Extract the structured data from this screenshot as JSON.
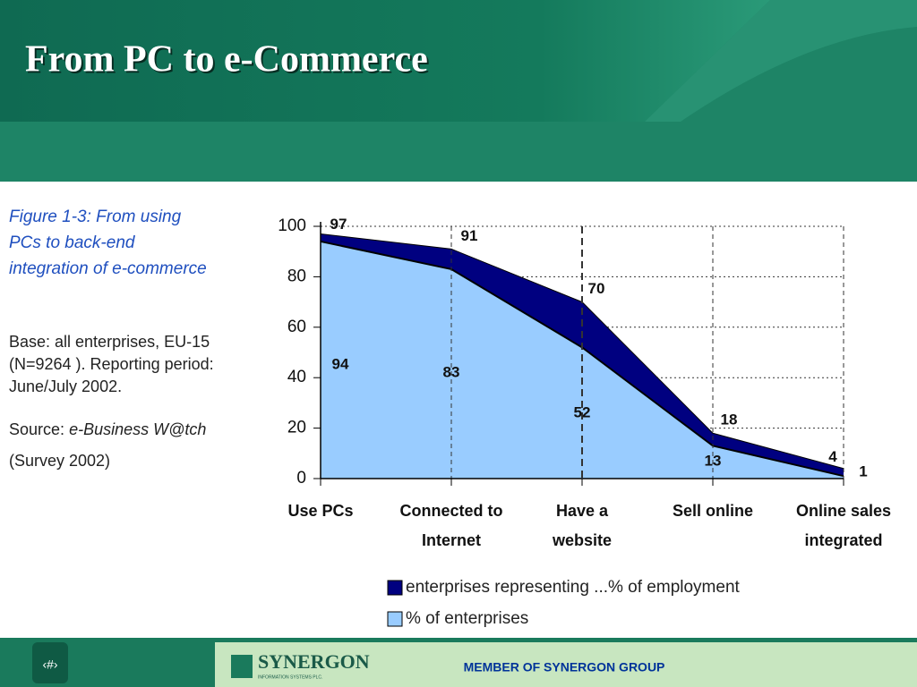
{
  "slide": {
    "title": "From PC to e-Commerce",
    "caption": "Figure 1-3: From using PCs to back-end integration of e-commerce",
    "base": "Base: all enterprises, EU-15 (N=9264 ). Reporting period: June/July 2002.",
    "source_label": "Source:",
    "source_name": "e-Business W@tch",
    "survey": "(Survey 2002)",
    "footer": {
      "page": "‹#›",
      "logo": "SYNERGON",
      "logo_sub": "INFORMATION SYSTEMS PLC.",
      "member": "MEMBER OF SYNERGON GROUP"
    }
  },
  "chart_data": {
    "type": "area",
    "categories": [
      "Use PCs",
      "Connected to Internet",
      "Have a website",
      "Sell online",
      "Online sales integrated"
    ],
    "series": [
      {
        "name": "enterprises representing ...% of employment",
        "color": "#000080",
        "values": [
          97,
          91,
          70,
          18,
          4
        ]
      },
      {
        "name": "% of enterprises",
        "color": "#99ccff",
        "values": [
          94,
          83,
          52,
          13,
          1
        ]
      }
    ],
    "ylim": [
      0,
      100
    ],
    "yticks": [
      0,
      20,
      40,
      60,
      80,
      100
    ],
    "grid": true
  }
}
